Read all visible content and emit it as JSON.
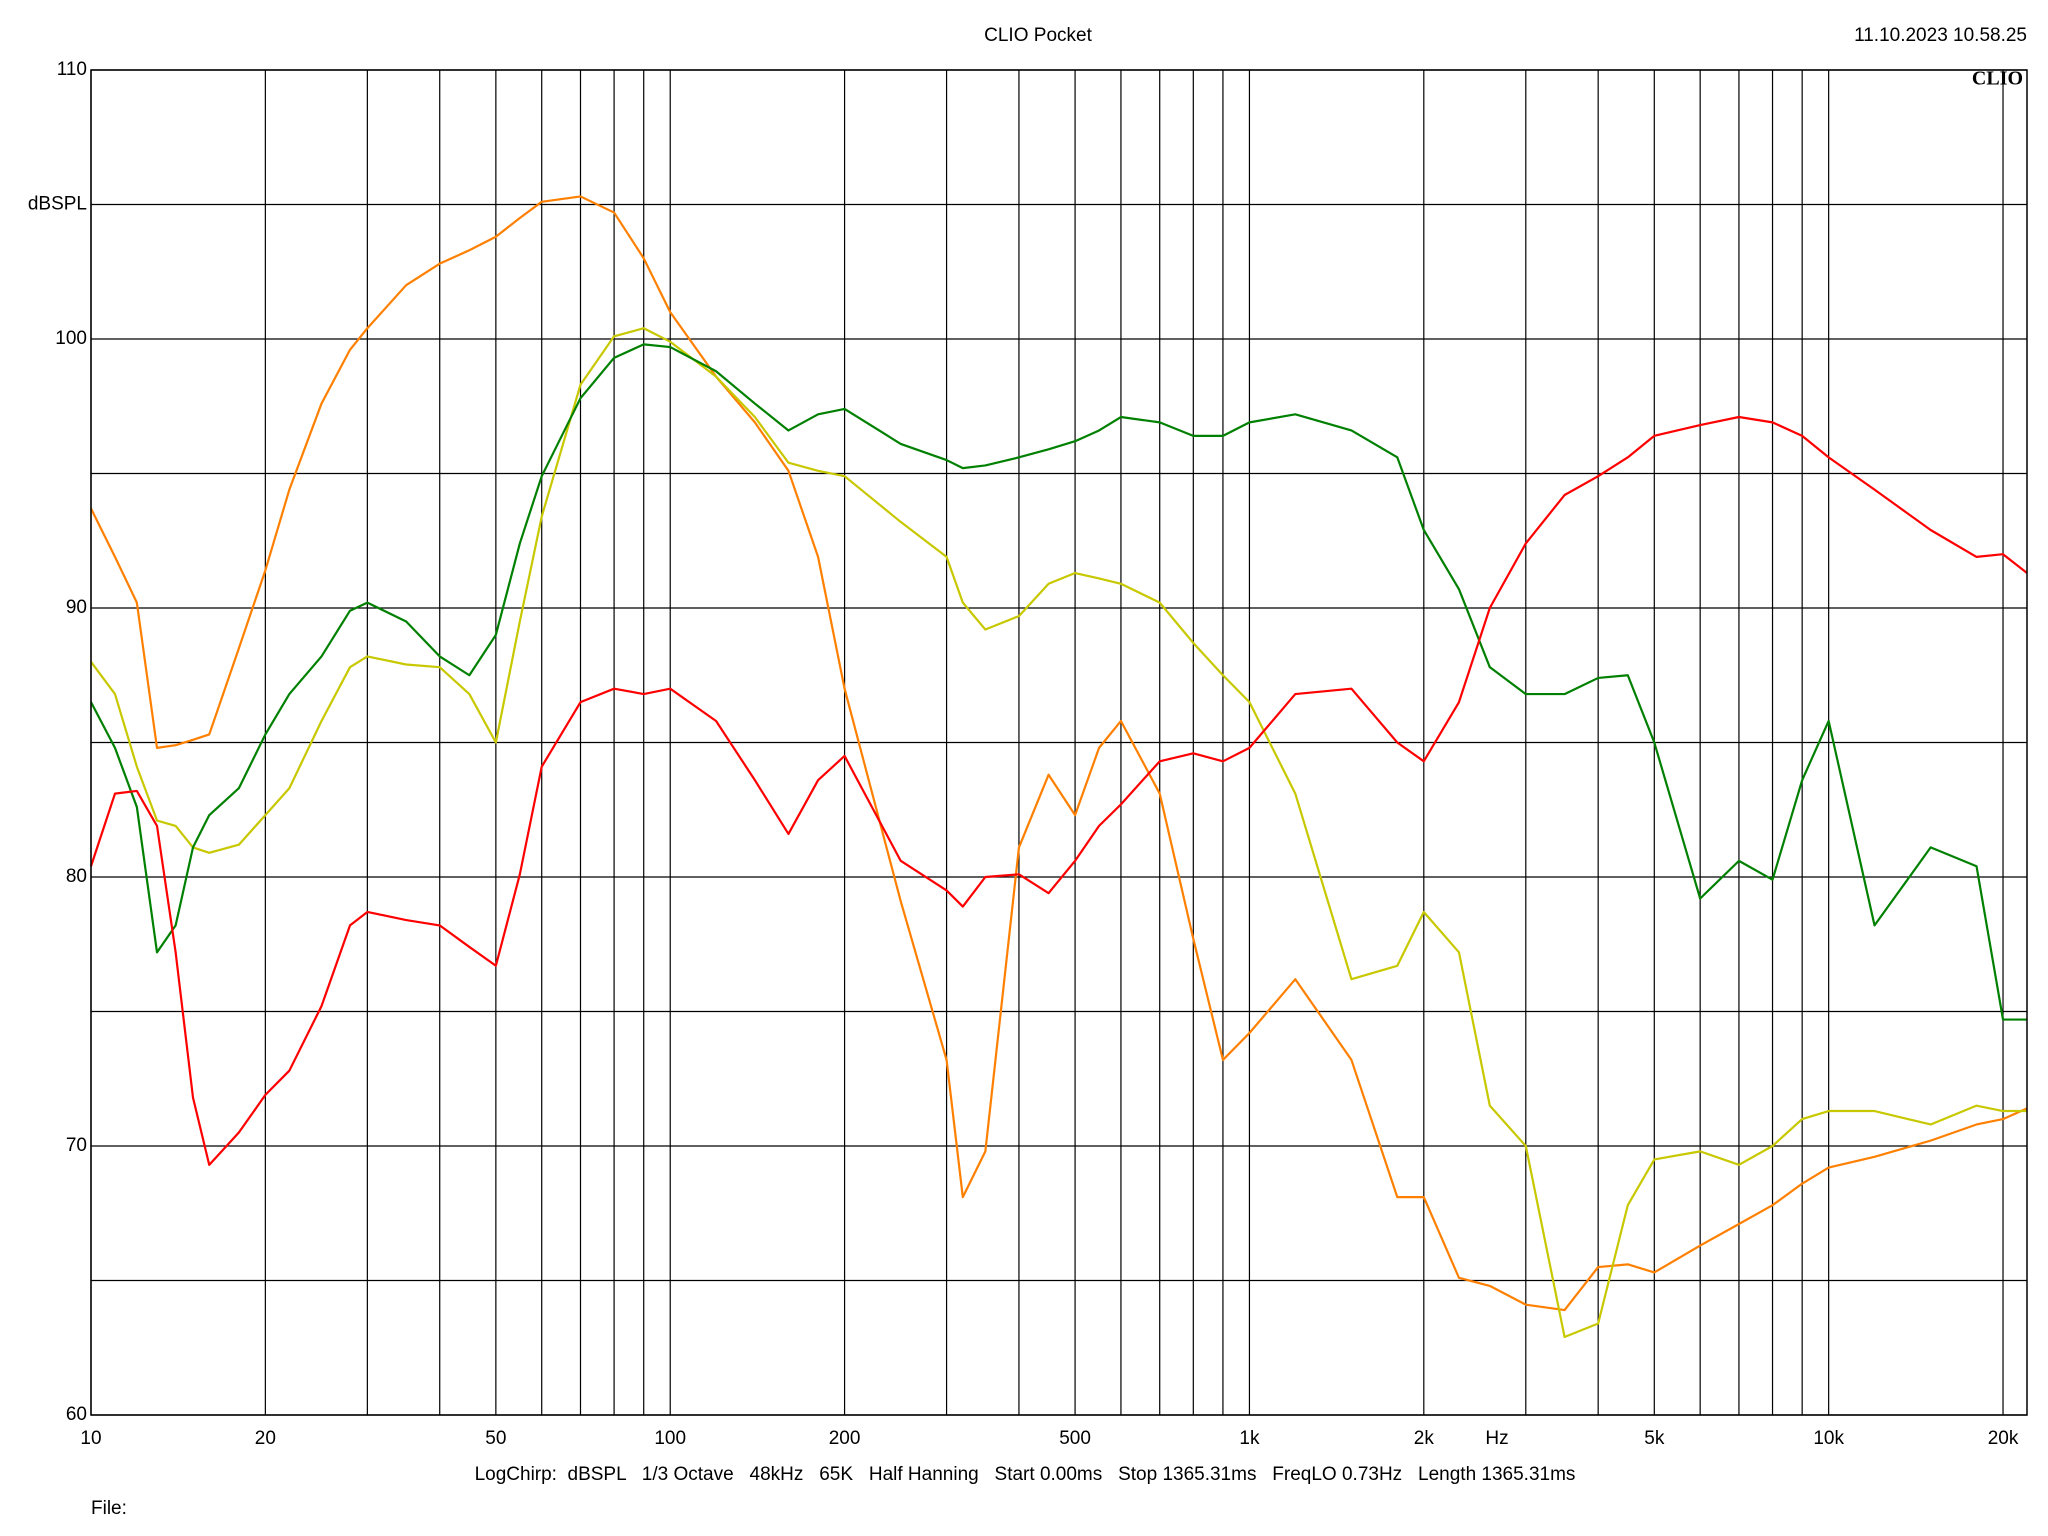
{
  "chart_data": {
    "type": "line",
    "title": "CLIO Pocket",
    "timestamp": "11.10.2023 10.58.25",
    "logo": "CLIO",
    "y_label": "dBSPL",
    "x_label": "Hz",
    "settings_line": "LogChirp:  dBSPL   1/3 Octave   48kHz   65K   Half Hanning   Start 0.00ms   Stop 1365.31ms   FreqLO 0.73Hz   Length 1365.31ms",
    "file_label": "File:",
    "x_scale": "log",
    "grid": true,
    "xlim": [
      10,
      22000
    ],
    "ylim": [
      60,
      110
    ],
    "xticks": [
      10,
      20,
      50,
      100,
      200,
      500,
      {
        "value": 1000,
        "label": "1k"
      },
      {
        "value": 2000,
        "label": "2k"
      },
      {
        "value": 5000,
        "label": "5k"
      },
      {
        "value": 10000,
        "label": "10k"
      },
      {
        "value": 20000,
        "label": "20k"
      }
    ],
    "yticks": [
      60,
      70,
      80,
      90,
      100,
      110
    ],
    "x": [
      10,
      11,
      12,
      13,
      14,
      15,
      16,
      18,
      20,
      22,
      25,
      28,
      30,
      35,
      40,
      45,
      50,
      55,
      60,
      70,
      80,
      90,
      100,
      120,
      140,
      160,
      180,
      200,
      250,
      300,
      320,
      350,
      400,
      450,
      500,
      550,
      600,
      700,
      800,
      900,
      1000,
      1200,
      1500,
      1800,
      2000,
      2300,
      2600,
      3000,
      3500,
      4000,
      4500,
      5000,
      6000,
      7000,
      8000,
      9000,
      10000,
      12000,
      15000,
      18000,
      20000,
      22000
    ],
    "series": [
      {
        "name": "orange",
        "color": "#ff8000",
        "values": [
          93.7,
          91.9,
          90.2,
          84.8,
          84.9,
          85.1,
          85.3,
          88.5,
          91.4,
          94.4,
          97.6,
          99.6,
          100.4,
          102.0,
          102.8,
          103.3,
          103.8,
          104.5,
          105.1,
          105.3,
          104.7,
          103.0,
          101.0,
          98.6,
          96.9,
          95.1,
          91.9,
          87.0,
          79.1,
          73.2,
          68.1,
          69.8,
          81.1,
          83.8,
          82.3,
          84.8,
          85.8,
          83.1,
          77.7,
          73.2,
          74.2,
          76.2,
          73.2,
          68.1,
          68.1,
          65.1,
          64.8,
          64.1,
          63.9,
          65.5,
          65.6,
          65.3,
          66.3,
          67.1,
          67.8,
          68.6,
          69.2,
          69.6,
          70.2,
          70.8,
          71.0,
          71.4
        ]
      },
      {
        "name": "yellow",
        "color": "#c8c800",
        "values": [
          88.0,
          86.8,
          84.1,
          82.1,
          81.9,
          81.1,
          80.9,
          81.2,
          82.3,
          83.3,
          85.8,
          87.8,
          88.2,
          87.9,
          87.8,
          86.8,
          85.0,
          89.5,
          93.4,
          98.3,
          100.1,
          100.4,
          99.9,
          98.6,
          97.1,
          95.4,
          95.1,
          94.9,
          93.2,
          91.9,
          90.2,
          89.2,
          89.7,
          90.9,
          91.3,
          91.1,
          90.9,
          90.2,
          88.7,
          87.5,
          86.5,
          83.1,
          76.2,
          76.7,
          78.7,
          77.2,
          71.5,
          70.0,
          62.9,
          63.4,
          67.8,
          69.5,
          69.8,
          69.3,
          70.0,
          71.0,
          71.3,
          71.3,
          70.8,
          71.5,
          71.3,
          71.3
        ]
      },
      {
        "name": "green",
        "color": "#008000",
        "values": [
          86.5,
          84.8,
          82.6,
          77.2,
          78.2,
          81.1,
          82.3,
          83.3,
          85.3,
          86.8,
          88.2,
          89.9,
          90.2,
          89.5,
          88.2,
          87.5,
          89.0,
          92.4,
          94.9,
          97.8,
          99.3,
          99.8,
          99.7,
          98.8,
          97.6,
          96.6,
          97.2,
          97.4,
          96.1,
          95.5,
          95.2,
          95.3,
          95.6,
          95.9,
          96.2,
          96.6,
          97.1,
          96.9,
          96.4,
          96.4,
          96.9,
          97.2,
          96.6,
          95.6,
          92.9,
          90.7,
          87.8,
          86.8,
          86.8,
          87.4,
          87.5,
          85.0,
          79.2,
          80.6,
          79.9,
          83.6,
          85.8,
          78.2,
          81.1,
          80.4,
          74.7,
          74.7
        ]
      },
      {
        "name": "red",
        "color": "#ff0000",
        "values": [
          80.4,
          83.1,
          83.2,
          81.9,
          77.2,
          71.8,
          69.3,
          70.5,
          71.9,
          72.8,
          75.2,
          78.2,
          78.7,
          78.4,
          78.2,
          77.4,
          76.7,
          80.1,
          84.1,
          86.5,
          87.0,
          86.8,
          87.0,
          85.8,
          83.6,
          81.6,
          83.6,
          84.5,
          80.6,
          79.5,
          78.9,
          80.0,
          80.1,
          79.4,
          80.6,
          81.9,
          82.7,
          84.3,
          84.6,
          84.3,
          84.8,
          86.8,
          87.0,
          85.0,
          84.3,
          86.5,
          90.0,
          92.4,
          94.2,
          94.9,
          95.6,
          96.4,
          96.8,
          97.1,
          96.9,
          96.4,
          95.6,
          94.4,
          92.9,
          91.9,
          92.0,
          91.3
        ]
      }
    ]
  }
}
